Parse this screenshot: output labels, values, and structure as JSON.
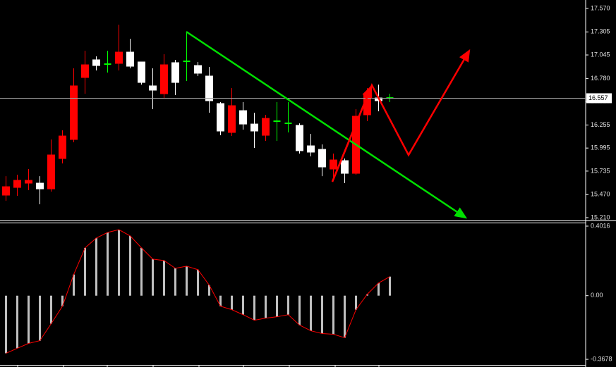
{
  "chart_data": [
    {
      "type": "candlestick",
      "open": [
        15.464,
        15.551,
        15.599,
        15.599,
        15.535,
        15.877,
        16.092,
        16.791,
        16.99,
        16.942,
        16.95,
        17.077,
        16.966,
        16.696,
        16.608,
        16.958,
        16.974,
        16.926,
        16.807,
        16.497,
        16.171,
        16.417,
        16.266,
        16.139,
        16.298,
        16.274,
        16.251,
        16.02,
        15.98,
        15.758,
        15.853,
        15.71,
        16.37,
        16.56,
        16.56
      ],
      "high": [
        15.678,
        15.694,
        15.758,
        15.678,
        16.092,
        16.195,
        16.894,
        17.093,
        17.029,
        17.093,
        17.387,
        17.228,
        16.966,
        16.894,
        17.053,
        16.99,
        17.307,
        16.966,
        16.91,
        16.513,
        16.672,
        16.513,
        16.394,
        16.37,
        16.513,
        16.513,
        16.274,
        16.155,
        16.036,
        15.933,
        15.877,
        16.433,
        16.672,
        16.711,
        16.608
      ],
      "low": [
        15.4,
        15.456,
        15.52,
        15.361,
        15.504,
        15.822,
        16.06,
        16.608,
        16.87,
        16.847,
        16.87,
        16.894,
        16.711,
        16.433,
        16.553,
        16.592,
        16.751,
        16.807,
        16.394,
        16.139,
        16.131,
        16.203,
        15.996,
        16.076,
        16.076,
        16.171,
        15.933,
        15.901,
        15.678,
        15.639,
        15.599,
        15.694,
        16.298,
        16.41,
        16.513
      ],
      "close": [
        15.559,
        15.631,
        15.631,
        15.535,
        15.917,
        16.131,
        16.696,
        16.934,
        16.926,
        16.942,
        17.077,
        16.918,
        16.735,
        16.648,
        16.934,
        16.735,
        16.974,
        16.839,
        16.529,
        16.187,
        16.473,
        16.266,
        16.187,
        16.33,
        16.298,
        16.274,
        15.965,
        15.949,
        15.782,
        15.861,
        15.71,
        16.354,
        16.6,
        16.529,
        16.56
      ],
      "up_color": "#ff0000",
      "down_color": "#ffffff",
      "doji_color": "#00ff00",
      "ylim": [
        15.178,
        17.665
      ],
      "yticks": [
        {
          "value": 17.57,
          "label": "17.570"
        },
        17.305,
        17.045,
        {
          "value": 16.78,
          "label": "16.780"
        },
        {
          "value": 16.52,
          "label": "16.520"
        },
        16.255,
        15.995,
        15.735,
        {
          "value": 15.47,
          "label": "15.470"
        },
        {
          "value": 15.21,
          "label": "15.210"
        }
      ],
      "last_price": 16.557
    },
    {
      "type": "histogram",
      "values": [
        -0.333,
        -0.304,
        -0.276,
        -0.26,
        -0.162,
        -0.061,
        0.122,
        0.276,
        0.333,
        0.365,
        0.381,
        0.345,
        0.276,
        0.211,
        0.203,
        0.158,
        0.17,
        0.15,
        0.061,
        -0.061,
        -0.081,
        -0.11,
        -0.142,
        -0.13,
        -0.122,
        -0.11,
        -0.17,
        -0.203,
        -0.219,
        -0.223,
        -0.243,
        -0.081,
        0.008,
        0.073,
        0.11
      ],
      "color": "#c0c0c0",
      "line_color": "#ff0000",
      "ylim": [
        -0.4,
        0.422
      ],
      "yticks": [
        0.4016,
        {
          "value": 0,
          "label": "0.00"
        },
        -0.3678
      ]
    }
  ]
}
